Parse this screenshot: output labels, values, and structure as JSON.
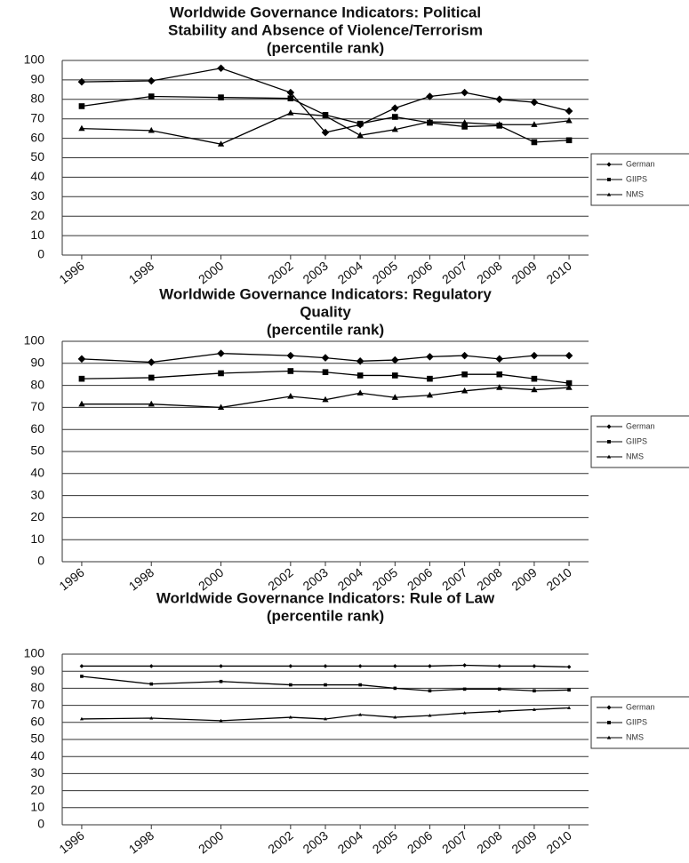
{
  "chart_data": [
    {
      "type": "line",
      "title": [
        "Worldwide Governance Indicators: Political",
        "Stability and Absence of Violence/Terrorism"
      ],
      "subtitle": "(percentile rank)",
      "x": [
        1996,
        1998,
        2000,
        2002,
        2003,
        2004,
        2005,
        2006,
        2007,
        2008,
        2009,
        2010
      ],
      "xlim": [
        1995.44,
        2010.56
      ],
      "xticks": [
        1996,
        1998,
        2000,
        2002,
        2003,
        2004,
        2005,
        2006,
        2007,
        2008,
        2009,
        2010
      ],
      "ylim": [
        0,
        100
      ],
      "yticks": [
        0,
        10,
        20,
        30,
        40,
        50,
        60,
        70,
        80,
        90,
        100
      ],
      "grid": true,
      "legend": "right",
      "series": [
        {
          "name": "German",
          "color": "#000000",
          "marker": "diamond",
          "values": [
            89,
            89.5,
            96,
            83.5,
            63,
            67,
            75.5,
            81.5,
            83.5,
            80,
            78.5,
            74
          ]
        },
        {
          "name": "GIIPS",
          "color": "#000000",
          "marker": "square",
          "values": [
            76.5,
            81.5,
            81,
            80.5,
            72,
            67.5,
            71,
            68,
            66,
            66.5,
            58,
            59
          ]
        },
        {
          "name": "NMS",
          "color": "#000000",
          "marker": "triangle",
          "values": [
            65,
            64,
            57,
            73,
            71.5,
            61.5,
            64.5,
            68.5,
            68,
            67,
            67,
            69
          ]
        }
      ]
    },
    {
      "type": "line",
      "title": [
        "Worldwide Governance Indicators: Regulatory",
        "Quality"
      ],
      "subtitle": "(percentile rank)",
      "x": [
        1996,
        1998,
        2000,
        2002,
        2003,
        2004,
        2005,
        2006,
        2007,
        2008,
        2009,
        2010
      ],
      "xlim": [
        1995.44,
        2010.56
      ],
      "xticks": [
        1996,
        1998,
        2000,
        2002,
        2003,
        2004,
        2005,
        2006,
        2007,
        2008,
        2009,
        2010
      ],
      "ylim": [
        0,
        100
      ],
      "yticks": [
        0,
        10,
        20,
        30,
        40,
        50,
        60,
        70,
        80,
        90,
        100
      ],
      "grid": true,
      "legend": "right",
      "series": [
        {
          "name": "German",
          "color": "#000000",
          "marker": "diamond",
          "values": [
            92,
            90.5,
            94.5,
            93.5,
            92.5,
            91,
            91.5,
            93,
            93.5,
            92,
            93.5,
            93.5
          ]
        },
        {
          "name": "GIIPS",
          "color": "#000000",
          "marker": "square",
          "values": [
            83,
            83.5,
            85.5,
            86.5,
            86,
            84.5,
            84.5,
            83,
            85,
            85,
            83,
            81
          ]
        },
        {
          "name": "NMS",
          "color": "#000000",
          "marker": "triangle",
          "values": [
            71.5,
            71.5,
            70,
            75,
            73.5,
            76.5,
            74.5,
            75.5,
            77.5,
            79,
            78,
            79
          ]
        }
      ]
    },
    {
      "type": "line",
      "title": [
        "Worldwide Governance Indicators: Rule of Law"
      ],
      "subtitle": "(percentile rank)",
      "x": [
        1996,
        1998,
        2000,
        2002,
        2003,
        2004,
        2005,
        2006,
        2007,
        2008,
        2009,
        2010
      ],
      "xlim": [
        1995.44,
        2010.56
      ],
      "xticks": [
        1996,
        1998,
        2000,
        2002,
        2003,
        2004,
        2005,
        2006,
        2007,
        2008,
        2009,
        2010
      ],
      "ylim": [
        0,
        100
      ],
      "yticks": [
        0,
        10,
        20,
        30,
        40,
        50,
        60,
        70,
        80,
        90,
        100
      ],
      "grid": true,
      "legend": "right",
      "series": [
        {
          "name": "German",
          "color": "#000000",
          "marker": "diamond",
          "values": [
            93,
            93,
            93,
            93,
            93,
            93,
            93,
            93,
            93.5,
            93,
            93,
            92.5
          ]
        },
        {
          "name": "GIIPS",
          "color": "#000000",
          "marker": "square",
          "values": [
            87,
            82.5,
            84,
            82,
            82,
            82,
            80,
            78.5,
            79.5,
            79.5,
            78.5,
            79
          ]
        },
        {
          "name": "NMS",
          "color": "#000000",
          "marker": "triangle",
          "values": [
            62,
            62.5,
            61,
            63,
            62,
            64.5,
            63,
            64,
            65.5,
            66.5,
            67.5,
            68.5
          ]
        }
      ]
    }
  ]
}
